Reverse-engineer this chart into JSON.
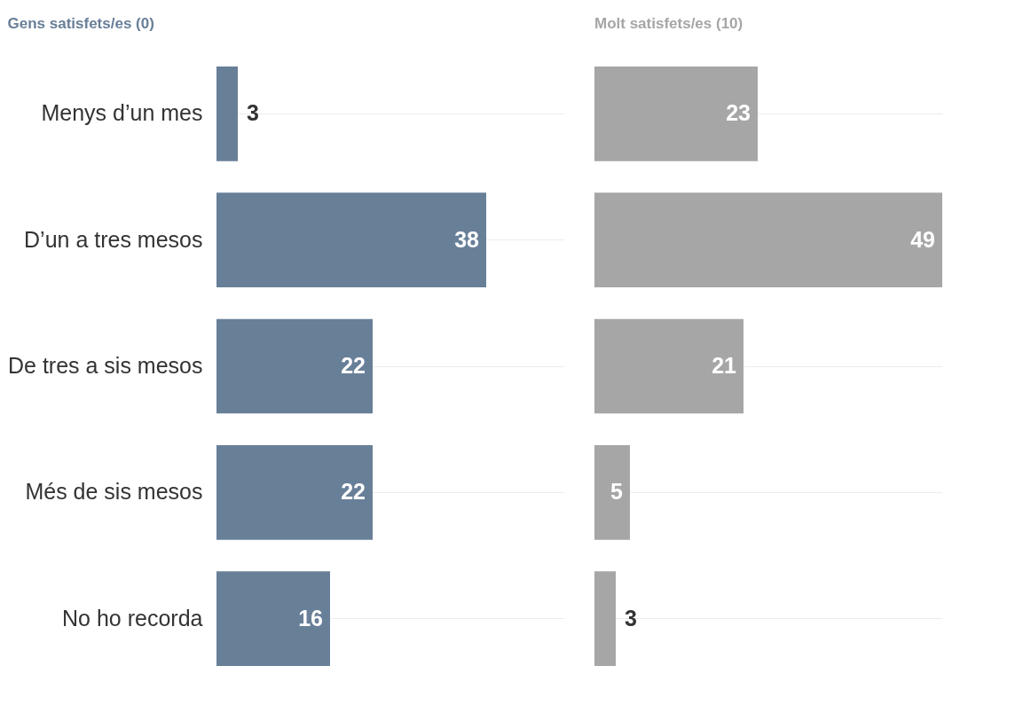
{
  "chart_data": [
    {
      "type": "bar",
      "orientation": "horizontal",
      "title": "Gens satisfets/es (0)",
      "categories": [
        "Menys d’un mes",
        "D’un a tres mesos",
        "De tres a sis mesos",
        "Més de sis mesos",
        "No ho recorda"
      ],
      "values": [
        3,
        38,
        22,
        22,
        16
      ],
      "color": "#687f98",
      "data_labels": true,
      "grid": "y"
    },
    {
      "type": "bar",
      "orientation": "horizontal",
      "title": "Molt satisfets/es (10)",
      "values": [
        23,
        49,
        21,
        5,
        3
      ],
      "color": "#a6a6a6",
      "data_labels": true,
      "grid": "y",
      "tick_labels": false
    }
  ]
}
